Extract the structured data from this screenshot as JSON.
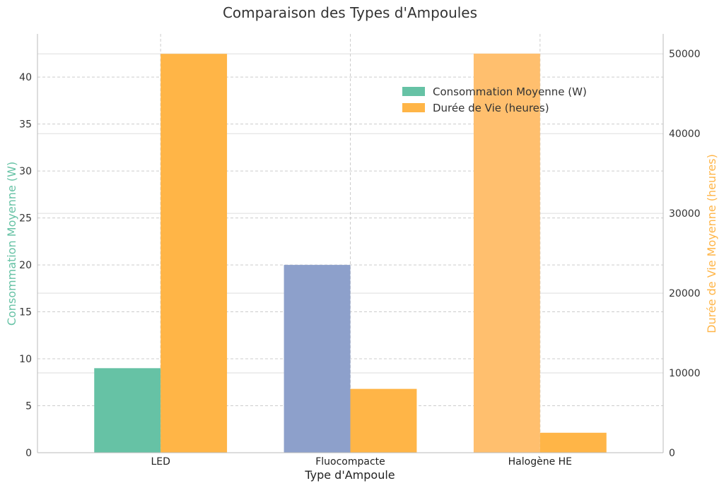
{
  "chart_data": {
    "type": "bar",
    "title": "Comparaison des Types d'Ampoules",
    "xlabel": "Type d'Ampoule",
    "ylabel": "Consommation Moyenne (W)",
    "y2label": "Durée de Vie Moyenne (heures)",
    "categories": [
      "LED",
      "Fluocompacte",
      "Halogène HE"
    ],
    "series": [
      {
        "name": "Consommation Moyenne (W)",
        "axis": "left",
        "values": [
          9,
          20,
          42.5
        ],
        "colors": [
          "#66c2a5",
          "#8da0cb",
          "#ffbf6e"
        ]
      },
      {
        "name": "Durée de Vie (heures)",
        "axis": "right",
        "values": [
          50000,
          8000,
          2500
        ],
        "colors": [
          "#ffb547",
          "#ffb547",
          "#ffb547"
        ]
      }
    ],
    "ylim": [
      0,
      44.6
    ],
    "y2lim": [
      0,
      52500
    ],
    "yticks": [
      0,
      5,
      10,
      15,
      20,
      25,
      30,
      35,
      40
    ],
    "y2ticks": [
      0,
      10000,
      20000,
      30000,
      40000,
      50000
    ],
    "grid": true,
    "legend_position": "upper-right",
    "colors": {
      "left_axis_label": "#66c2a5",
      "right_axis_label": "#ffb547",
      "legend_series1": "#66c2a5",
      "legend_series2": "#ffb547"
    }
  }
}
